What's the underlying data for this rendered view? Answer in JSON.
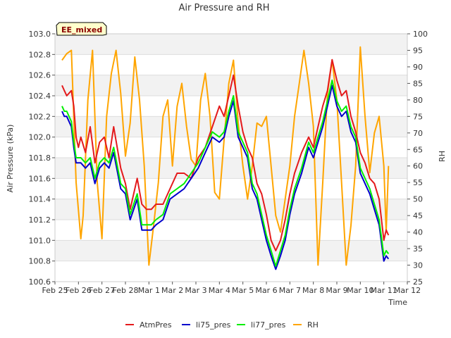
{
  "chart_data": {
    "type": "line",
    "title": "Air Pressure and RH",
    "xlabel": "Time",
    "ylabel": "Air Pressure (kPa)",
    "y2label": "RH",
    "badge": "EE_mixed",
    "x_ticks": [
      "Feb 25",
      "Feb 26",
      "Feb 27",
      "Feb 28",
      "Mar 1",
      "Mar 2",
      "Mar 3",
      "Mar 4",
      "Mar 5",
      "Mar 6",
      "Mar 7",
      "Mar 8",
      "Mar 9",
      "Mar 10",
      "Mar 11",
      "Mar 12"
    ],
    "xlim": [
      0,
      15
    ],
    "ylim": [
      100.6,
      103.0
    ],
    "y_ticks": [
      "100.6",
      "100.8",
      "101.0",
      "101.2",
      "101.4",
      "101.6",
      "101.8",
      "102.0",
      "102.2",
      "102.4",
      "102.6",
      "102.8",
      "103.0"
    ],
    "y2lim": [
      25,
      100
    ],
    "y2_ticks": [
      "25",
      "30",
      "35",
      "40",
      "45",
      "50",
      "55",
      "60",
      "65",
      "70",
      "75",
      "80",
      "85",
      "90",
      "95",
      "100"
    ],
    "grid": "horizontal bands",
    "legend": "bottom",
    "series": [
      {
        "name": "AtmPres",
        "color": "#e41a1c",
        "axis": "left",
        "x": [
          0.3,
          0.4,
          0.5,
          0.7,
          0.8,
          0.9,
          1.0,
          1.1,
          1.3,
          1.5,
          1.7,
          1.9,
          2.1,
          2.3,
          2.5,
          2.8,
          3.0,
          3.2,
          3.5,
          3.7,
          3.9,
          4.1,
          4.3,
          4.6,
          4.9,
          5.2,
          5.5,
          5.8,
          6.1,
          6.4,
          6.7,
          7.0,
          7.2,
          7.4,
          7.6,
          7.8,
          8.0,
          8.2,
          8.4,
          8.6,
          8.8,
          9.0,
          9.2,
          9.4,
          9.6,
          9.8,
          10.0,
          10.2,
          10.5,
          10.8,
          11.0,
          11.2,
          11.4,
          11.6,
          11.8,
          12.0,
          12.2,
          12.4,
          12.6,
          12.8,
          13.0,
          13.2,
          13.4,
          13.6,
          13.8,
          14.0,
          14.1,
          14.2
        ],
        "values": [
          102.5,
          102.45,
          102.4,
          102.45,
          102.3,
          102.0,
          101.9,
          102.0,
          101.85,
          102.1,
          101.75,
          101.95,
          102.0,
          101.8,
          102.1,
          101.7,
          101.55,
          101.3,
          101.6,
          101.35,
          101.3,
          101.3,
          101.35,
          101.35,
          101.5,
          101.65,
          101.65,
          101.6,
          101.8,
          101.9,
          102.1,
          102.3,
          102.2,
          102.4,
          102.6,
          102.3,
          102.05,
          101.9,
          101.8,
          101.55,
          101.45,
          101.25,
          101.0,
          100.9,
          101.0,
          101.2,
          101.45,
          101.65,
          101.85,
          102.0,
          101.9,
          102.1,
          102.3,
          102.45,
          102.75,
          102.55,
          102.4,
          102.45,
          102.2,
          102.05,
          101.85,
          101.75,
          101.6,
          101.55,
          101.4,
          101.0,
          101.1,
          101.05
        ]
      },
      {
        "name": "li75_pres",
        "color": "#0000cc",
        "axis": "left",
        "x": [
          0.3,
          0.4,
          0.5,
          0.7,
          0.8,
          0.9,
          1.0,
          1.1,
          1.3,
          1.5,
          1.7,
          1.9,
          2.1,
          2.3,
          2.5,
          2.8,
          3.0,
          3.2,
          3.5,
          3.7,
          3.9,
          4.1,
          4.3,
          4.6,
          4.9,
          5.2,
          5.5,
          5.8,
          6.1,
          6.4,
          6.7,
          7.0,
          7.2,
          7.4,
          7.6,
          7.8,
          8.0,
          8.2,
          8.4,
          8.6,
          8.8,
          9.0,
          9.2,
          9.4,
          9.6,
          9.8,
          10.0,
          10.2,
          10.5,
          10.8,
          11.0,
          11.2,
          11.4,
          11.6,
          11.8,
          12.0,
          12.2,
          12.4,
          12.6,
          12.8,
          13.0,
          13.2,
          13.4,
          13.6,
          13.8,
          14.0,
          14.1,
          14.2
        ],
        "values": [
          102.25,
          102.2,
          102.2,
          102.1,
          101.9,
          101.75,
          101.75,
          101.75,
          101.7,
          101.75,
          101.55,
          101.7,
          101.75,
          101.7,
          101.85,
          101.5,
          101.45,
          101.2,
          101.4,
          101.1,
          101.1,
          101.1,
          101.15,
          101.2,
          101.4,
          101.45,
          101.5,
          101.6,
          101.7,
          101.85,
          102.0,
          101.95,
          102.0,
          102.2,
          102.35,
          102.0,
          101.9,
          101.8,
          101.5,
          101.4,
          101.2,
          101.0,
          100.85,
          100.72,
          100.85,
          101.0,
          101.25,
          101.45,
          101.65,
          101.9,
          101.8,
          101.95,
          102.1,
          102.3,
          102.5,
          102.3,
          102.2,
          102.25,
          102.05,
          101.95,
          101.65,
          101.55,
          101.45,
          101.3,
          101.15,
          100.8,
          100.85,
          100.82
        ]
      },
      {
        "name": "li77_pres",
        "color": "#00ee00",
        "axis": "left",
        "x": [
          0.3,
          0.4,
          0.5,
          0.7,
          0.8,
          0.9,
          1.0,
          1.1,
          1.3,
          1.5,
          1.7,
          1.9,
          2.1,
          2.3,
          2.5,
          2.8,
          3.0,
          3.2,
          3.5,
          3.7,
          3.9,
          4.1,
          4.3,
          4.6,
          4.9,
          5.2,
          5.5,
          5.8,
          6.1,
          6.4,
          6.7,
          7.0,
          7.2,
          7.4,
          7.6,
          7.8,
          8.0,
          8.2,
          8.4,
          8.6,
          8.8,
          9.0,
          9.2,
          9.4,
          9.6,
          9.8,
          10.0,
          10.2,
          10.5,
          10.8,
          11.0,
          11.2,
          11.4,
          11.6,
          11.8,
          12.0,
          12.2,
          12.4,
          12.6,
          12.8,
          13.0,
          13.2,
          13.4,
          13.6,
          13.8,
          14.0,
          14.1,
          14.2
        ],
        "values": [
          102.3,
          102.25,
          102.25,
          102.15,
          101.95,
          101.8,
          101.8,
          101.8,
          101.75,
          101.8,
          101.6,
          101.75,
          101.8,
          101.75,
          101.9,
          101.55,
          101.5,
          101.25,
          101.45,
          101.15,
          101.15,
          101.15,
          101.2,
          101.25,
          101.45,
          101.5,
          101.55,
          101.65,
          101.75,
          101.9,
          102.05,
          102.0,
          102.05,
          102.25,
          102.4,
          102.05,
          101.95,
          101.85,
          101.55,
          101.45,
          101.25,
          101.05,
          100.9,
          100.75,
          100.9,
          101.05,
          101.3,
          101.5,
          101.7,
          101.95,
          101.85,
          102.0,
          102.15,
          102.35,
          102.55,
          102.35,
          102.25,
          102.3,
          102.1,
          102.0,
          101.7,
          101.6,
          101.5,
          101.35,
          101.2,
          100.85,
          100.9,
          100.87
        ]
      },
      {
        "name": "RH",
        "color": "#ffa500",
        "axis": "right",
        "x": [
          0.3,
          0.5,
          0.7,
          0.9,
          1.1,
          1.2,
          1.4,
          1.6,
          1.8,
          2.0,
          2.2,
          2.4,
          2.6,
          2.8,
          3.0,
          3.2,
          3.4,
          3.6,
          3.8,
          3.9,
          4.0,
          4.2,
          4.4,
          4.6,
          4.8,
          5.0,
          5.2,
          5.4,
          5.6,
          5.8,
          6.0,
          6.2,
          6.4,
          6.6,
          6.8,
          7.0,
          7.2,
          7.4,
          7.6,
          7.8,
          8.0,
          8.2,
          8.4,
          8.6,
          8.8,
          9.0,
          9.2,
          9.4,
          9.6,
          9.8,
          10.0,
          10.2,
          10.4,
          10.6,
          10.8,
          11.0,
          11.2,
          11.4,
          11.6,
          11.8,
          12.0,
          12.2,
          12.4,
          12.6,
          12.8,
          13.0,
          13.2,
          13.4,
          13.6,
          13.8,
          14.0,
          14.1,
          14.2
        ],
        "values": [
          92,
          94,
          95,
          55,
          38,
          45,
          80,
          95,
          55,
          38,
          75,
          88,
          95,
          82,
          63,
          73,
          93,
          80,
          60,
          45,
          30,
          42,
          55,
          75,
          80,
          60,
          78,
          85,
          72,
          62,
          60,
          80,
          88,
          75,
          52,
          50,
          68,
          85,
          92,
          73,
          60,
          50,
          60,
          73,
          72,
          75,
          60,
          45,
          40,
          50,
          60,
          75,
          85,
          95,
          85,
          72,
          30,
          55,
          82,
          92,
          80,
          55,
          30,
          42,
          60,
          96,
          75,
          58,
          70,
          75,
          60,
          40,
          60
        ]
      }
    ]
  }
}
